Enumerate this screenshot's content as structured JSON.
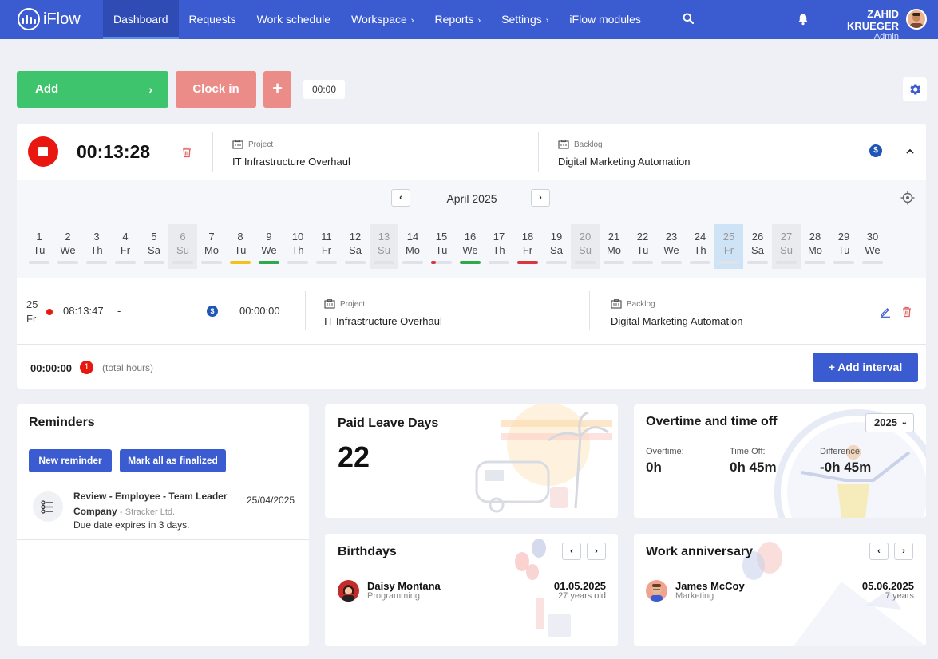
{
  "header": {
    "logo_text": "iFlow",
    "nav": [
      {
        "label": "Dashboard",
        "active": true,
        "has_submenu": false
      },
      {
        "label": "Requests",
        "active": false,
        "has_submenu": false
      },
      {
        "label": "Work schedule",
        "active": false,
        "has_submenu": false
      },
      {
        "label": "Workspace",
        "active": false,
        "has_submenu": true
      },
      {
        "label": "Reports",
        "active": false,
        "has_submenu": true
      },
      {
        "label": "Settings",
        "active": false,
        "has_submenu": true
      },
      {
        "label": "iFlow modules",
        "active": false,
        "has_submenu": false
      }
    ],
    "user_name": "ZAHID KRUEGER",
    "user_role": "Admin",
    "icons": [
      "search-icon",
      "bell-icon"
    ]
  },
  "toolbar": {
    "add_label": "Add",
    "clock_in_label": "Clock in",
    "plus_label": "+",
    "time_badge": "00:00"
  },
  "timer": {
    "elapsed": "00:13:28",
    "project_label": "Project",
    "project_value": "IT Infrastructure Overhaul",
    "backlog_label": "Backlog",
    "backlog_value": "Digital Marketing Automation",
    "billable_symbol": "$"
  },
  "calendar": {
    "month": "April 2025",
    "days": [
      {
        "num": "1",
        "wd": "Tu",
        "weekend": false,
        "today": false,
        "status": "none"
      },
      {
        "num": "2",
        "wd": "We",
        "weekend": false,
        "today": false,
        "status": "none"
      },
      {
        "num": "3",
        "wd": "Th",
        "weekend": false,
        "today": false,
        "status": "none"
      },
      {
        "num": "4",
        "wd": "Fr",
        "weekend": false,
        "today": false,
        "status": "none"
      },
      {
        "num": "5",
        "wd": "Sa",
        "weekend": false,
        "today": false,
        "status": "none"
      },
      {
        "num": "6",
        "wd": "Su",
        "weekend": true,
        "today": false,
        "status": "none"
      },
      {
        "num": "7",
        "wd": "Mo",
        "weekend": false,
        "today": false,
        "status": "none"
      },
      {
        "num": "8",
        "wd": "Tu",
        "weekend": false,
        "today": false,
        "status": "yellow"
      },
      {
        "num": "9",
        "wd": "We",
        "weekend": false,
        "today": false,
        "status": "green"
      },
      {
        "num": "10",
        "wd": "Th",
        "weekend": false,
        "today": false,
        "status": "none"
      },
      {
        "num": "11",
        "wd": "Fr",
        "weekend": false,
        "today": false,
        "status": "none"
      },
      {
        "num": "12",
        "wd": "Sa",
        "weekend": false,
        "today": false,
        "status": "none"
      },
      {
        "num": "13",
        "wd": "Su",
        "weekend": true,
        "today": false,
        "status": "none"
      },
      {
        "num": "14",
        "wd": "Mo",
        "weekend": false,
        "today": false,
        "status": "none"
      },
      {
        "num": "15",
        "wd": "Tu",
        "weekend": false,
        "today": false,
        "status": "red-partial"
      },
      {
        "num": "16",
        "wd": "We",
        "weekend": false,
        "today": false,
        "status": "green"
      },
      {
        "num": "17",
        "wd": "Th",
        "weekend": false,
        "today": false,
        "status": "none"
      },
      {
        "num": "18",
        "wd": "Fr",
        "weekend": false,
        "today": false,
        "status": "red"
      },
      {
        "num": "19",
        "wd": "Sa",
        "weekend": false,
        "today": false,
        "status": "none"
      },
      {
        "num": "20",
        "wd": "Su",
        "weekend": true,
        "today": false,
        "status": "none"
      },
      {
        "num": "21",
        "wd": "Mo",
        "weekend": false,
        "today": false,
        "status": "none"
      },
      {
        "num": "22",
        "wd": "Tu",
        "weekend": false,
        "today": false,
        "status": "none"
      },
      {
        "num": "23",
        "wd": "We",
        "weekend": false,
        "today": false,
        "status": "none"
      },
      {
        "num": "24",
        "wd": "Th",
        "weekend": false,
        "today": false,
        "status": "none"
      },
      {
        "num": "25",
        "wd": "Fr",
        "weekend": false,
        "today": true,
        "status": "none"
      },
      {
        "num": "26",
        "wd": "Sa",
        "weekend": false,
        "today": false,
        "status": "none"
      },
      {
        "num": "27",
        "wd": "Su",
        "weekend": true,
        "today": false,
        "status": "none"
      },
      {
        "num": "28",
        "wd": "Mo",
        "weekend": false,
        "today": false,
        "status": "none"
      },
      {
        "num": "29",
        "wd": "Tu",
        "weekend": false,
        "today": false,
        "status": "none"
      },
      {
        "num": "30",
        "wd": "We",
        "weekend": false,
        "today": false,
        "status": "none"
      }
    ],
    "status_colors": {
      "none": "#dfe2e8",
      "yellow": "#f2c21b",
      "green": "#2faa4a",
      "red": "#d9363e",
      "red-partial": "#d9363e"
    }
  },
  "entry": {
    "day_num": "25",
    "day_wd": "Fr",
    "start": "08:13:47",
    "end": "-",
    "billable_symbol": "$",
    "duration": "00:00:00",
    "project_label": "Project",
    "project_value": "IT Infrastructure Overhaul",
    "backlog_label": "Backlog",
    "backlog_value": "Digital Marketing Automation"
  },
  "totals": {
    "value": "00:00:00",
    "count": "1",
    "label": "(total hours)",
    "add_interval_label": "+  Add interval"
  },
  "reminders": {
    "title": "Reminders",
    "new_label": "New reminder",
    "finalize_label": "Mark all as finalized",
    "items": [
      {
        "title_line1": "Review - Employee - Team Leader",
        "title_line2": "Company",
        "company": "- Stracker Ltd.",
        "date": "25/04/2025",
        "note": "Due date expires in 3 days."
      }
    ]
  },
  "paid_leave": {
    "title": "Paid Leave Days",
    "value": "22"
  },
  "overtime": {
    "title": "Overtime and time off",
    "year": "2025",
    "overtime_label": "Overtime:",
    "overtime_value": "0h",
    "timeoff_label": "Time Off:",
    "timeoff_value": "0h 45m",
    "difference_label": "Difference:",
    "difference_value": "-0h 45m"
  },
  "birthdays": {
    "title": "Birthdays",
    "people": [
      {
        "name": "Daisy Montana",
        "dept": "Programming",
        "date": "01.05.2025",
        "detail": "27 years old"
      }
    ]
  },
  "anniversary": {
    "title": "Work anniversary",
    "people": [
      {
        "name": "James McCoy",
        "dept": "Marketing",
        "date": "05.06.2025",
        "detail": "7 years"
      }
    ]
  },
  "colors": {
    "brand": "#3b5bd0",
    "green": "#3ec46d",
    "salmon": "#ec8c88",
    "danger": "#e8170f"
  }
}
